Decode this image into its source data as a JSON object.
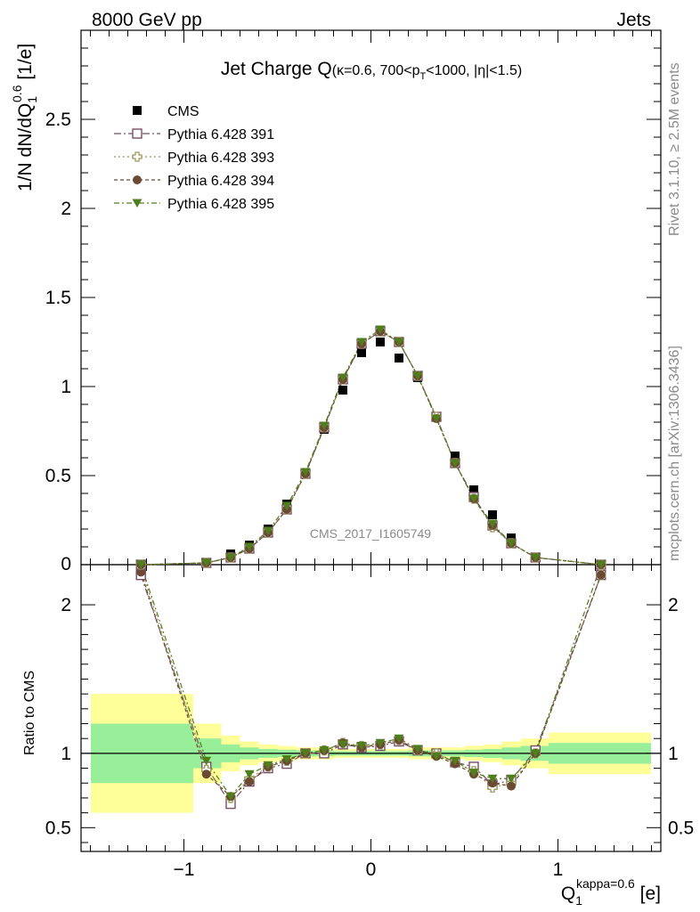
{
  "header": {
    "left_label": "8000 GeV pp",
    "right_label": "Jets",
    "side_label_top": "Rivet 3.1.10, ≥ 2.5M events",
    "side_label_bottom": "mcplots.cern.ch [arXiv:1306.3436]",
    "watermark": "CMS_2017_I1605749"
  },
  "chart_data": {
    "type": "scatter",
    "title_main": "Jet Charge Q",
    "title_sub": "(κ=0.6, 700<p",
    "title_sub_sub": "T",
    "title_sub_end": "<1000, |η|<1.5)",
    "xlabel_main": "Q",
    "xlabel_sub": "1",
    "xlabel_sup": "kappa=0.6",
    "xlabel_unit": " [e]",
    "ylabel_main": "1/N dN/dQ",
    "ylabel_sub": "1",
    "ylabel_sup": "0.6",
    "ylabel_unit": " [1/e]",
    "ratio_ylabel": "Ratio to CMS",
    "xlim": [
      -1.55,
      1.55
    ],
    "ylim": [
      0,
      3.0
    ],
    "ratio_ylim": [
      0.34,
      2.27
    ],
    "xticks": [
      -1,
      0,
      1
    ],
    "xtick_labels": [
      "−1",
      "0",
      "1"
    ],
    "yticks": [
      0.5,
      1,
      1.5,
      2,
      2.5
    ],
    "ytick_labels": [
      "0.5",
      "1",
      "1.5",
      "2",
      "2.5"
    ],
    "ytick0_label": "0",
    "ratio_yticks": [
      0.5,
      1,
      2
    ],
    "ratio_ytick_labels": [
      "0.5",
      "1",
      "2"
    ],
    "x": [
      -1.23,
      -0.88,
      -0.75,
      -0.65,
      -0.55,
      -0.45,
      -0.35,
      -0.25,
      -0.15,
      -0.05,
      0.05,
      0.15,
      0.25,
      0.35,
      0.45,
      0.55,
      0.65,
      0.75,
      0.88,
      1.23
    ],
    "band_edges": [
      -1.55,
      -0.95,
      -0.8,
      -0.7,
      -0.6,
      -0.5,
      -0.4,
      -0.3,
      -0.2,
      -0.1,
      0.0,
      0.1,
      0.2,
      0.3,
      0.4,
      0.5,
      0.6,
      0.7,
      0.8,
      0.95,
      1.55
    ],
    "band_inner": [
      0.2,
      0.1,
      0.06,
      0.04,
      0.03,
      0.025,
      0.02,
      0.02,
      0.015,
      0.015,
      0.015,
      0.015,
      0.02,
      0.02,
      0.02,
      0.025,
      0.03,
      0.04,
      0.05,
      0.07
    ],
    "band_outer": [
      0.4,
      0.2,
      0.12,
      0.08,
      0.06,
      0.05,
      0.04,
      0.04,
      0.03,
      0.03,
      0.03,
      0.03,
      0.04,
      0.04,
      0.04,
      0.05,
      0.06,
      0.08,
      0.1,
      0.14
    ],
    "legend_position": "top-left",
    "series": [
      {
        "name": "CMS",
        "marker": "square-filled",
        "color": "#000000",
        "values": [
          0.0,
          0.01,
          0.06,
          0.11,
          0.2,
          0.34,
          0.51,
          0.76,
          0.98,
          1.19,
          1.25,
          1.16,
          1.05,
          0.83,
          0.61,
          0.42,
          0.28,
          0.15,
          0.04,
          0.0
        ]
      },
      {
        "name": "Pythia 6.428 391",
        "marker": "square-open",
        "color": "#7a4e66",
        "dash": "8,3,2,3",
        "values": [
          0.0,
          0.01,
          0.04,
          0.09,
          0.18,
          0.31,
          0.51,
          0.77,
          1.04,
          1.24,
          1.31,
          1.25,
          1.06,
          0.83,
          0.57,
          0.38,
          0.22,
          0.12,
          0.04,
          0.0
        ],
        "ratio": [
          2.2,
          0.91,
          0.66,
          0.81,
          0.9,
          0.93,
          1.0,
          1.0,
          1.06,
          1.04,
          1.05,
          1.08,
          1.02,
          1.0,
          0.94,
          0.91,
          0.79,
          0.82,
          1.02,
          2.2
        ]
      },
      {
        "name": "Pythia 6.428 393",
        "marker": "cross-open",
        "color": "#9a9a5a",
        "dash": "2,3",
        "values": [
          0.0,
          0.01,
          0.04,
          0.09,
          0.18,
          0.31,
          0.51,
          0.77,
          1.04,
          1.24,
          1.31,
          1.25,
          1.06,
          0.83,
          0.57,
          0.37,
          0.21,
          0.12,
          0.04,
          0.0
        ],
        "ratio": [
          2.25,
          0.89,
          0.7,
          0.83,
          0.91,
          0.95,
          1.0,
          1.02,
          1.07,
          1.05,
          1.06,
          1.09,
          1.02,
          1.0,
          0.94,
          0.88,
          0.77,
          0.8,
          1.0,
          2.2
        ]
      },
      {
        "name": "Pythia 6.428 394",
        "marker": "circle-filled",
        "color": "#6b4a33",
        "dash": "4,3",
        "values": [
          0.0,
          0.01,
          0.04,
          0.09,
          0.18,
          0.31,
          0.51,
          0.77,
          1.04,
          1.24,
          1.31,
          1.25,
          1.06,
          0.82,
          0.57,
          0.37,
          0.22,
          0.12,
          0.04,
          0.0
        ],
        "ratio": [
          2.22,
          0.86,
          0.71,
          0.81,
          0.91,
          0.95,
          1.0,
          1.02,
          1.07,
          1.04,
          1.06,
          1.09,
          1.02,
          0.98,
          0.93,
          0.86,
          0.8,
          0.78,
          1.0,
          2.2
        ]
      },
      {
        "name": "Pythia 6.428 395",
        "marker": "triangle-down-filled",
        "color": "#4e7f1c",
        "dash": "6,3,2,3",
        "values": [
          0.0,
          0.01,
          0.04,
          0.1,
          0.19,
          0.33,
          0.52,
          0.78,
          1.05,
          1.25,
          1.32,
          1.25,
          1.06,
          0.82,
          0.57,
          0.37,
          0.23,
          0.12,
          0.04,
          0.0
        ],
        "ratio": [
          2.27,
          0.95,
          0.71,
          0.86,
          0.92,
          0.96,
          1.0,
          1.02,
          1.06,
          1.05,
          1.07,
          1.1,
          1.03,
          0.98,
          0.95,
          0.87,
          0.83,
          0.83,
          1.0,
          2.27
        ]
      }
    ],
    "band_colors": {
      "inner": "#99ee99",
      "outer": "#ffff99"
    }
  }
}
